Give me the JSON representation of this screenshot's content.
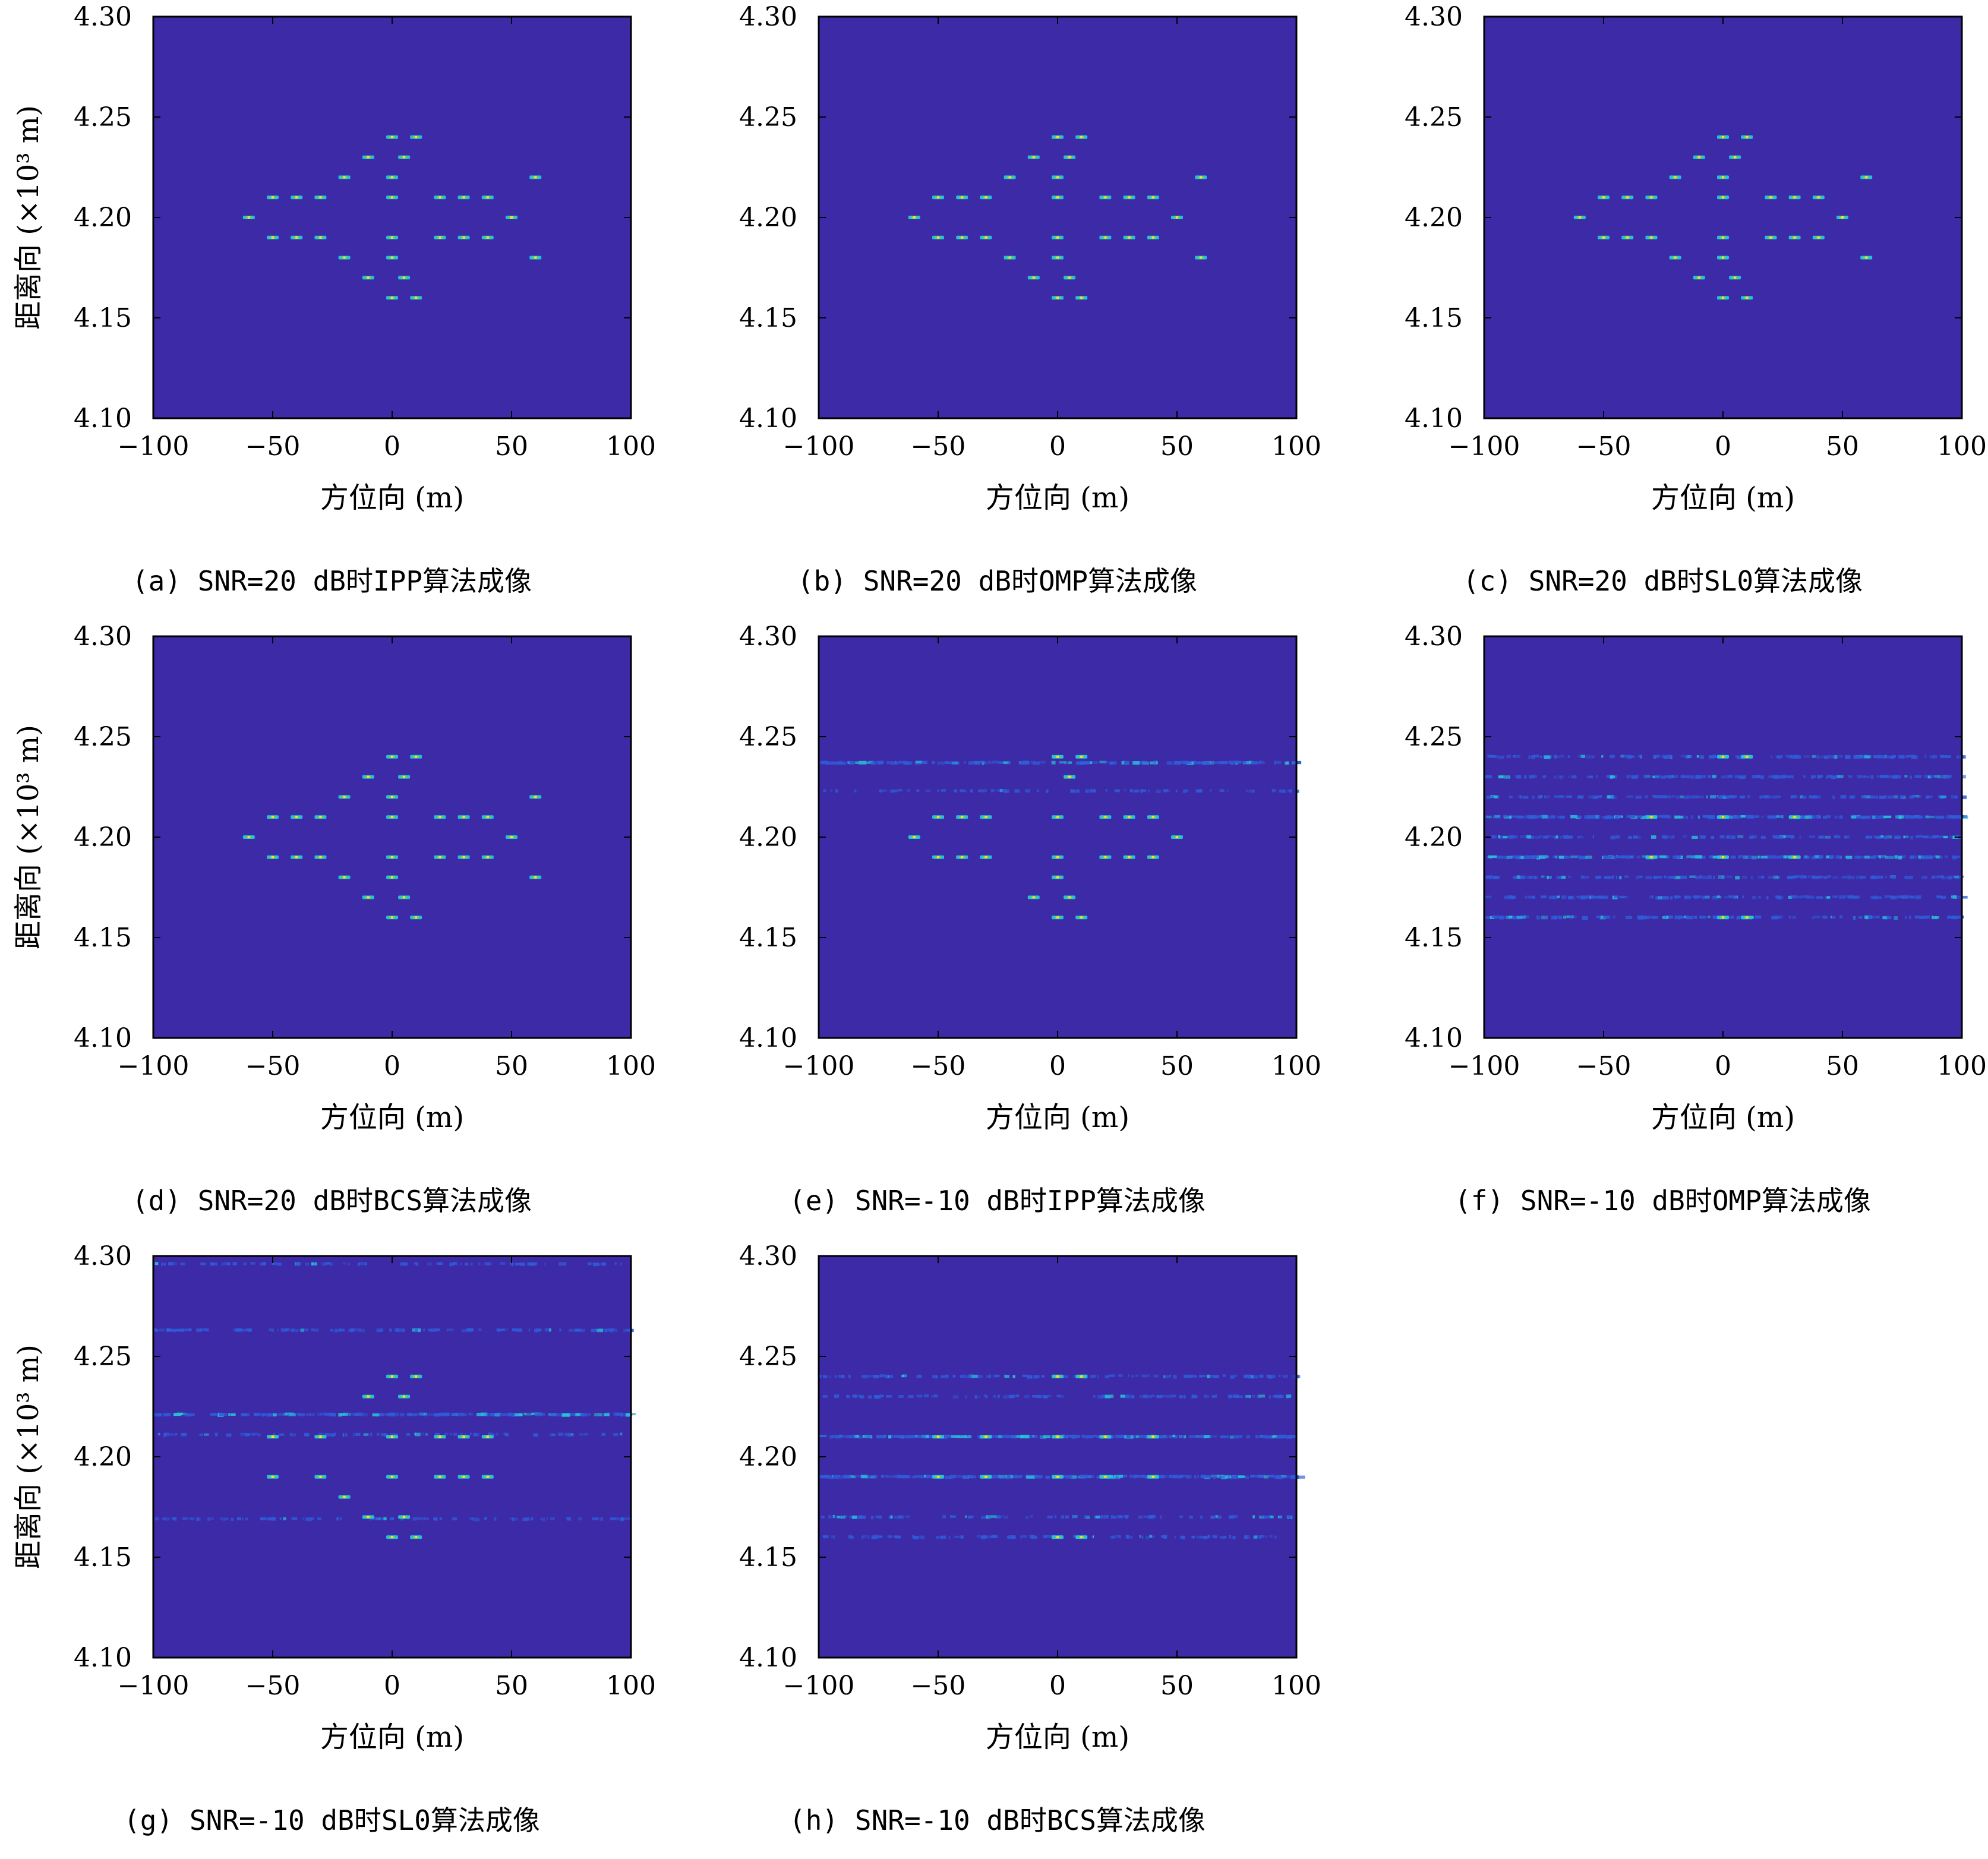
{
  "colors": {
    "background": "#3d2aa6",
    "noise": "#2f5bd8",
    "cyan": "#25c0d8",
    "green": "#5bd36a",
    "yellow": "#f2e32a",
    "frame": "#000000"
  },
  "chart_data": [
    {
      "id": "a",
      "type": "heatmap",
      "caption": "(a) SNR=20 dB时IPP算法成像",
      "xlabel": "方位向 (m)",
      "ylabel": "距离向 (×10³ m)",
      "xlim": [
        -100,
        100
      ],
      "ylim": [
        4.1,
        4.3
      ],
      "xticks": [
        "−100",
        "−50",
        "0",
        "50",
        "100"
      ],
      "yticks": [
        "4.10",
        "4.15",
        "4.20",
        "4.25",
        "4.30"
      ],
      "show_ylabel": true,
      "point_targets": [
        {
          "x": 0,
          "y": 4.24
        },
        {
          "x": 10,
          "y": 4.24
        },
        {
          "x": -10,
          "y": 4.23
        },
        {
          "x": 5,
          "y": 4.23
        },
        {
          "x": -20,
          "y": 4.22
        },
        {
          "x": 0,
          "y": 4.22
        },
        {
          "x": 60,
          "y": 4.22
        },
        {
          "x": -50,
          "y": 4.21
        },
        {
          "x": -40,
          "y": 4.21
        },
        {
          "x": -30,
          "y": 4.21
        },
        {
          "x": 0,
          "y": 4.21
        },
        {
          "x": 20,
          "y": 4.21
        },
        {
          "x": 30,
          "y": 4.21
        },
        {
          "x": 40,
          "y": 4.21
        },
        {
          "x": -60,
          "y": 4.2
        },
        {
          "x": 50,
          "y": 4.2
        },
        {
          "x": -50,
          "y": 4.19
        },
        {
          "x": -40,
          "y": 4.19
        },
        {
          "x": -30,
          "y": 4.19
        },
        {
          "x": 0,
          "y": 4.19
        },
        {
          "x": 20,
          "y": 4.19
        },
        {
          "x": 30,
          "y": 4.19
        },
        {
          "x": 40,
          "y": 4.19
        },
        {
          "x": -20,
          "y": 4.18
        },
        {
          "x": 0,
          "y": 4.18
        },
        {
          "x": 60,
          "y": 4.18
        },
        {
          "x": -10,
          "y": 4.17
        },
        {
          "x": 5,
          "y": 4.17
        },
        {
          "x": 0,
          "y": 4.16
        },
        {
          "x": 10,
          "y": 4.16
        }
      ],
      "noise_rows": []
    },
    {
      "id": "b",
      "type": "heatmap",
      "caption": "(b) SNR=20 dB时OMP算法成像",
      "xlabel": "方位向 (m)",
      "ylabel": "",
      "xlim": [
        -100,
        100
      ],
      "ylim": [
        4.1,
        4.3
      ],
      "xticks": [
        "−100",
        "−50",
        "0",
        "50",
        "100"
      ],
      "yticks": [
        "4.10",
        "4.15",
        "4.20",
        "4.25",
        "4.30"
      ],
      "show_ylabel": false,
      "point_targets": [
        {
          "x": 0,
          "y": 4.24
        },
        {
          "x": 10,
          "y": 4.24
        },
        {
          "x": -10,
          "y": 4.23
        },
        {
          "x": 5,
          "y": 4.23
        },
        {
          "x": -20,
          "y": 4.22
        },
        {
          "x": 0,
          "y": 4.22
        },
        {
          "x": 60,
          "y": 4.22
        },
        {
          "x": -50,
          "y": 4.21
        },
        {
          "x": -40,
          "y": 4.21
        },
        {
          "x": -30,
          "y": 4.21
        },
        {
          "x": 0,
          "y": 4.21
        },
        {
          "x": 20,
          "y": 4.21
        },
        {
          "x": 30,
          "y": 4.21
        },
        {
          "x": 40,
          "y": 4.21
        },
        {
          "x": -60,
          "y": 4.2
        },
        {
          "x": 50,
          "y": 4.2
        },
        {
          "x": -50,
          "y": 4.19
        },
        {
          "x": -40,
          "y": 4.19
        },
        {
          "x": -30,
          "y": 4.19
        },
        {
          "x": 0,
          "y": 4.19
        },
        {
          "x": 20,
          "y": 4.19
        },
        {
          "x": 30,
          "y": 4.19
        },
        {
          "x": 40,
          "y": 4.19
        },
        {
          "x": -20,
          "y": 4.18
        },
        {
          "x": 0,
          "y": 4.18
        },
        {
          "x": 60,
          "y": 4.18
        },
        {
          "x": -10,
          "y": 4.17
        },
        {
          "x": 5,
          "y": 4.17
        },
        {
          "x": 0,
          "y": 4.16
        },
        {
          "x": 10,
          "y": 4.16
        }
      ],
      "noise_rows": []
    },
    {
      "id": "c",
      "type": "heatmap",
      "caption": "(c) SNR=20 dB时SL0算法成像",
      "xlabel": "方位向 (m)",
      "ylabel": "",
      "xlim": [
        -100,
        100
      ],
      "ylim": [
        4.1,
        4.3
      ],
      "xticks": [
        "−100",
        "−50",
        "0",
        "50",
        "100"
      ],
      "yticks": [
        "4.10",
        "4.15",
        "4.20",
        "4.25",
        "4.30"
      ],
      "show_ylabel": false,
      "point_targets": [
        {
          "x": 0,
          "y": 4.24
        },
        {
          "x": 10,
          "y": 4.24
        },
        {
          "x": -10,
          "y": 4.23
        },
        {
          "x": 5,
          "y": 4.23
        },
        {
          "x": -20,
          "y": 4.22
        },
        {
          "x": 0,
          "y": 4.22
        },
        {
          "x": 60,
          "y": 4.22
        },
        {
          "x": -50,
          "y": 4.21
        },
        {
          "x": -40,
          "y": 4.21
        },
        {
          "x": -30,
          "y": 4.21
        },
        {
          "x": 0,
          "y": 4.21
        },
        {
          "x": 20,
          "y": 4.21
        },
        {
          "x": 30,
          "y": 4.21
        },
        {
          "x": 40,
          "y": 4.21
        },
        {
          "x": -60,
          "y": 4.2
        },
        {
          "x": 50,
          "y": 4.2
        },
        {
          "x": -50,
          "y": 4.19
        },
        {
          "x": -40,
          "y": 4.19
        },
        {
          "x": -30,
          "y": 4.19
        },
        {
          "x": 0,
          "y": 4.19
        },
        {
          "x": 20,
          "y": 4.19
        },
        {
          "x": 30,
          "y": 4.19
        },
        {
          "x": 40,
          "y": 4.19
        },
        {
          "x": -20,
          "y": 4.18
        },
        {
          "x": 0,
          "y": 4.18
        },
        {
          "x": 60,
          "y": 4.18
        },
        {
          "x": -10,
          "y": 4.17
        },
        {
          "x": 5,
          "y": 4.17
        },
        {
          "x": 0,
          "y": 4.16
        },
        {
          "x": 10,
          "y": 4.16
        }
      ],
      "noise_rows": []
    },
    {
      "id": "d",
      "type": "heatmap",
      "caption": "(d) SNR=20 dB时BCS算法成像",
      "xlabel": "方位向 (m)",
      "ylabel": "距离向 (×10³ m)",
      "xlim": [
        -100,
        100
      ],
      "ylim": [
        4.1,
        4.3
      ],
      "xticks": [
        "−100",
        "−50",
        "0",
        "50",
        "100"
      ],
      "yticks": [
        "4.10",
        "4.15",
        "4.20",
        "4.25",
        "4.30"
      ],
      "show_ylabel": true,
      "point_targets": [
        {
          "x": 0,
          "y": 4.24
        },
        {
          "x": 10,
          "y": 4.24
        },
        {
          "x": -10,
          "y": 4.23
        },
        {
          "x": 5,
          "y": 4.23
        },
        {
          "x": -20,
          "y": 4.22
        },
        {
          "x": 0,
          "y": 4.22
        },
        {
          "x": 60,
          "y": 4.22
        },
        {
          "x": -50,
          "y": 4.21
        },
        {
          "x": -40,
          "y": 4.21
        },
        {
          "x": -30,
          "y": 4.21
        },
        {
          "x": 0,
          "y": 4.21
        },
        {
          "x": 20,
          "y": 4.21
        },
        {
          "x": 30,
          "y": 4.21
        },
        {
          "x": 40,
          "y": 4.21
        },
        {
          "x": -60,
          "y": 4.2
        },
        {
          "x": 50,
          "y": 4.2
        },
        {
          "x": -50,
          "y": 4.19
        },
        {
          "x": -40,
          "y": 4.19
        },
        {
          "x": -30,
          "y": 4.19
        },
        {
          "x": 0,
          "y": 4.19
        },
        {
          "x": 20,
          "y": 4.19
        },
        {
          "x": 30,
          "y": 4.19
        },
        {
          "x": 40,
          "y": 4.19
        },
        {
          "x": -20,
          "y": 4.18
        },
        {
          "x": 0,
          "y": 4.18
        },
        {
          "x": 60,
          "y": 4.18
        },
        {
          "x": -10,
          "y": 4.17
        },
        {
          "x": 5,
          "y": 4.17
        },
        {
          "x": 0,
          "y": 4.16
        },
        {
          "x": 10,
          "y": 4.16
        }
      ],
      "noise_rows": []
    },
    {
      "id": "e",
      "type": "heatmap",
      "caption": "(e) SNR=-10 dB时IPP算法成像",
      "xlabel": "方位向 (m)",
      "ylabel": "",
      "xlim": [
        -100,
        100
      ],
      "ylim": [
        4.1,
        4.3
      ],
      "xticks": [
        "−100",
        "−50",
        "0",
        "50",
        "100"
      ],
      "yticks": [
        "4.10",
        "4.15",
        "4.20",
        "4.25",
        "4.30"
      ],
      "show_ylabel": false,
      "point_targets": [
        {
          "x": 0,
          "y": 4.24
        },
        {
          "x": 10,
          "y": 4.24
        },
        {
          "x": 5,
          "y": 4.23
        },
        {
          "x": -50,
          "y": 4.21
        },
        {
          "x": -40,
          "y": 4.21
        },
        {
          "x": -30,
          "y": 4.21
        },
        {
          "x": 0,
          "y": 4.21
        },
        {
          "x": 20,
          "y": 4.21
        },
        {
          "x": 30,
          "y": 4.21
        },
        {
          "x": 40,
          "y": 4.21
        },
        {
          "x": -60,
          "y": 4.2
        },
        {
          "x": 50,
          "y": 4.2
        },
        {
          "x": -50,
          "y": 4.19
        },
        {
          "x": -40,
          "y": 4.19
        },
        {
          "x": -30,
          "y": 4.19
        },
        {
          "x": 0,
          "y": 4.19
        },
        {
          "x": 20,
          "y": 4.19
        },
        {
          "x": 30,
          "y": 4.19
        },
        {
          "x": 40,
          "y": 4.19
        },
        {
          "x": 0,
          "y": 4.18
        },
        {
          "x": -10,
          "y": 4.17
        },
        {
          "x": 5,
          "y": 4.17
        },
        {
          "x": 0,
          "y": 4.16
        },
        {
          "x": 10,
          "y": 4.16
        }
      ],
      "noise_rows": [
        {
          "y": 4.237,
          "level": 0.8
        },
        {
          "y": 4.223,
          "level": 0.2
        }
      ]
    },
    {
      "id": "f",
      "type": "heatmap",
      "caption": "(f) SNR=-10 dB时OMP算法成像",
      "xlabel": "方位向 (m)",
      "ylabel": "",
      "xlim": [
        -100,
        100
      ],
      "ylim": [
        4.1,
        4.3
      ],
      "xticks": [
        "−100",
        "−50",
        "0",
        "50",
        "100"
      ],
      "yticks": [
        "4.10",
        "4.15",
        "4.20",
        "4.25",
        "4.30"
      ],
      "show_ylabel": false,
      "point_targets": [
        {
          "x": 0,
          "y": 4.24
        },
        {
          "x": 10,
          "y": 4.24
        },
        {
          "x": -30,
          "y": 4.21
        },
        {
          "x": 0,
          "y": 4.21
        },
        {
          "x": 30,
          "y": 4.21
        },
        {
          "x": -30,
          "y": 4.19
        },
        {
          "x": 0,
          "y": 4.19
        },
        {
          "x": 30,
          "y": 4.19
        },
        {
          "x": 0,
          "y": 4.16
        },
        {
          "x": 10,
          "y": 4.16
        }
      ],
      "noise_rows": [
        {
          "y": 4.24,
          "level": 0.6
        },
        {
          "y": 4.23,
          "level": 0.5
        },
        {
          "y": 4.22,
          "level": 0.5
        },
        {
          "y": 4.21,
          "level": 0.9
        },
        {
          "y": 4.2,
          "level": 0.4
        },
        {
          "y": 4.19,
          "level": 0.9
        },
        {
          "y": 4.18,
          "level": 0.5
        },
        {
          "y": 4.17,
          "level": 0.5
        },
        {
          "y": 4.16,
          "level": 0.6
        }
      ]
    },
    {
      "id": "g",
      "type": "heatmap",
      "caption": "(g) SNR=-10 dB时SL0算法成像",
      "xlabel": "方位向 (m)",
      "ylabel": "距离向 (×10³ m)",
      "xlim": [
        -100,
        100
      ],
      "ylim": [
        4.1,
        4.3
      ],
      "xticks": [
        "−100",
        "−50",
        "0",
        "50",
        "100"
      ],
      "yticks": [
        "4.10",
        "4.15",
        "4.20",
        "4.25",
        "4.30"
      ],
      "show_ylabel": true,
      "point_targets": [
        {
          "x": 0,
          "y": 4.24
        },
        {
          "x": 10,
          "y": 4.24
        },
        {
          "x": -10,
          "y": 4.23
        },
        {
          "x": 5,
          "y": 4.23
        },
        {
          "x": -50,
          "y": 4.21
        },
        {
          "x": -30,
          "y": 4.21
        },
        {
          "x": 0,
          "y": 4.21
        },
        {
          "x": 20,
          "y": 4.21
        },
        {
          "x": 30,
          "y": 4.21
        },
        {
          "x": 40,
          "y": 4.21
        },
        {
          "x": -50,
          "y": 4.19
        },
        {
          "x": -30,
          "y": 4.19
        },
        {
          "x": 0,
          "y": 4.19
        },
        {
          "x": 20,
          "y": 4.19
        },
        {
          "x": 30,
          "y": 4.19
        },
        {
          "x": 40,
          "y": 4.19
        },
        {
          "x": -20,
          "y": 4.18
        },
        {
          "x": -10,
          "y": 4.17
        },
        {
          "x": 5,
          "y": 4.17
        },
        {
          "x": 0,
          "y": 4.16
        },
        {
          "x": 10,
          "y": 4.16
        }
      ],
      "noise_rows": [
        {
          "y": 4.296,
          "level": 0.2
        },
        {
          "y": 4.263,
          "level": 0.4
        },
        {
          "y": 4.221,
          "level": 0.8
        },
        {
          "y": 4.211,
          "level": 0.2
        },
        {
          "y": 4.169,
          "level": 0.2
        }
      ]
    },
    {
      "id": "h",
      "type": "heatmap",
      "caption": "(h) SNR=-10 dB时BCS算法成像",
      "xlabel": "方位向 (m)",
      "ylabel": "",
      "xlim": [
        -100,
        100
      ],
      "ylim": [
        4.1,
        4.3
      ],
      "xticks": [
        "−100",
        "−50",
        "0",
        "50",
        "100"
      ],
      "yticks": [
        "4.10",
        "4.15",
        "4.20",
        "4.25",
        "4.30"
      ],
      "show_ylabel": false,
      "point_targets": [
        {
          "x": -50,
          "y": 4.21
        },
        {
          "x": -30,
          "y": 4.21
        },
        {
          "x": 0,
          "y": 4.21
        },
        {
          "x": 20,
          "y": 4.21
        },
        {
          "x": 40,
          "y": 4.21
        },
        {
          "x": -50,
          "y": 4.19
        },
        {
          "x": -30,
          "y": 4.19
        },
        {
          "x": 0,
          "y": 4.19
        },
        {
          "x": 20,
          "y": 4.19
        },
        {
          "x": 40,
          "y": 4.19
        },
        {
          "x": 0,
          "y": 4.24
        },
        {
          "x": 10,
          "y": 4.24
        },
        {
          "x": 0,
          "y": 4.16
        },
        {
          "x": 10,
          "y": 4.16
        }
      ],
      "noise_rows": [
        {
          "y": 4.24,
          "level": 0.4
        },
        {
          "y": 4.23,
          "level": 0.3
        },
        {
          "y": 4.21,
          "level": 1.0
        },
        {
          "y": 4.19,
          "level": 1.0
        },
        {
          "y": 4.17,
          "level": 0.3
        },
        {
          "y": 4.16,
          "level": 0.3
        }
      ]
    }
  ]
}
